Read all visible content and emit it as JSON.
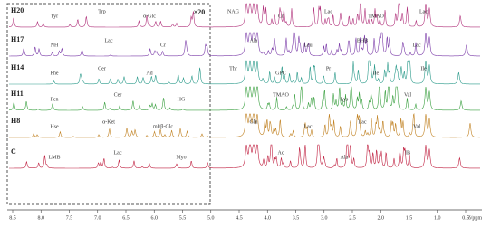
{
  "figure": {
    "inset_scale": "×20",
    "traces": [
      {
        "name": "H20",
        "labels": [
          "Tyr",
          "Trp",
          "α-Glc",
          "NAG",
          "Cr",
          "Lac",
          "TMAO",
          "Lac"
        ]
      },
      {
        "name": "H17",
        "labels": [
          "NH",
          "Lac",
          "Cr",
          "Ala",
          "Leu",
          "BHB",
          "Lac"
        ]
      },
      {
        "name": "H14",
        "labels": [
          "Phe",
          "Cer",
          "Ad",
          "Thr",
          "GPC",
          "Pr",
          "Ile",
          "Ile"
        ]
      },
      {
        "name": "H11",
        "labels": [
          "Fen",
          "Cer",
          "HG",
          "TMAO",
          "Lys",
          "Val"
        ]
      },
      {
        "name": "H8",
        "labels": [
          "Hse",
          "α-Ket",
          "mI/β-Glc",
          "Gln",
          "Lac",
          "Lac",
          "Val"
        ]
      },
      {
        "name": "C",
        "labels": [
          "LMB",
          "Lac",
          "Myo",
          "Ac",
          "Ala",
          "IB"
        ]
      }
    ],
    "x_axis": {
      "ticks": [
        "8.5",
        "8.0",
        "7.5",
        "7.0",
        "6.5",
        "6.0",
        "5.5",
        "5.0",
        "4.5",
        "4.0",
        "3.5",
        "3.0",
        "2.5",
        "2.0",
        "1.5",
        "1.0",
        "0.5"
      ],
      "unit": "δ/ppm"
    }
  }
}
